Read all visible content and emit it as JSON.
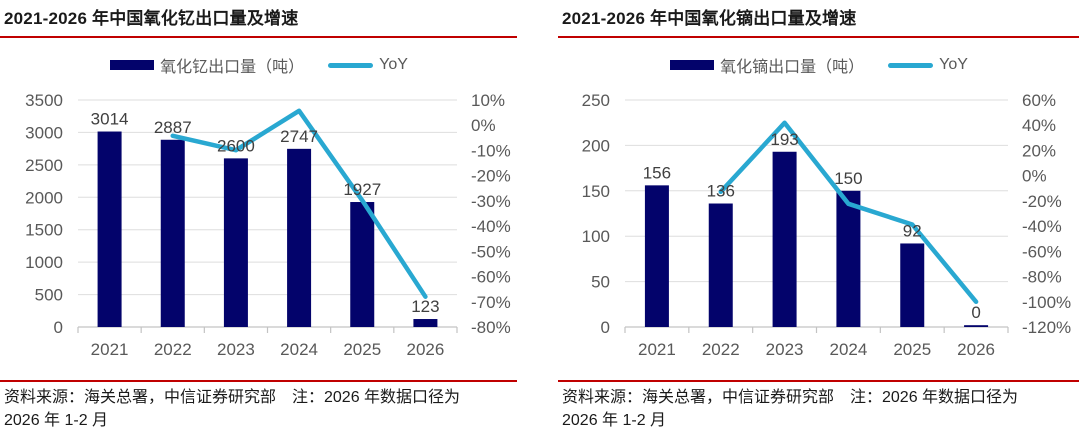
{
  "colors": {
    "bar_navy": "#03036B",
    "line_cyan": "#29A8D1",
    "rule_red": "#C00000",
    "grid_gray": "#DEDEDE",
    "axis_baseline_gray": "#C3C3C3",
    "axis_text_gray": "#595959",
    "data_label_gray": "#404040",
    "title_text": "#1A1A1A"
  },
  "chart_data": [
    {
      "type": "bar+line",
      "title": "2021-2026 年中国氧化钇出口量及增速",
      "categories": [
        "2021",
        "2022",
        "2023",
        "2024",
        "2025",
        "2026"
      ],
      "series": [
        {
          "name": "氧化钇出口量（吨）",
          "type": "bar",
          "axis": "left",
          "values": [
            3014,
            2887,
            2600,
            2747,
            1927,
            123
          ]
        },
        {
          "name": "YoY",
          "type": "line",
          "axis": "right",
          "unit": "%",
          "values": [
            null,
            -4.2,
            -9.9,
            5.7,
            -29.8,
            -68
          ]
        }
      ],
      "left_axis": {
        "min": 0,
        "max": 3500,
        "step": 500
      },
      "right_axis": {
        "min": -80,
        "max": 10,
        "step": 10,
        "suffix": "%"
      },
      "grid": "horizontal",
      "legend_position": "top-center",
      "source_note_lines": [
        "资料来源：海关总署，中信证券研究部　注：2026 年数据口径为",
        "2026 年 1-2 月"
      ]
    },
    {
      "type": "bar+line",
      "title": "2021-2026 年中国氧化镝出口量及增速",
      "categories": [
        "2021",
        "2022",
        "2023",
        "2024",
        "2025",
        "2026"
      ],
      "series": [
        {
          "name": "氧化镝出口量（吨）",
          "type": "bar",
          "axis": "left",
          "values": [
            156,
            136,
            193,
            150,
            92,
            0
          ]
        },
        {
          "name": "YoY",
          "type": "line",
          "axis": "right",
          "unit": "%",
          "values": [
            null,
            -12.8,
            41.9,
            -22.3,
            -38.7,
            -100
          ]
        }
      ],
      "left_axis": {
        "min": 0,
        "max": 250,
        "step": 50
      },
      "right_axis": {
        "min": -120,
        "max": 60,
        "step": 20,
        "suffix": "%"
      },
      "grid": "horizontal",
      "legend_position": "top-center",
      "source_note_lines": [
        "资料来源：海关总署，中信证券研究部　注：2026 年数据口径为",
        "2026 年 1-2 月"
      ]
    }
  ]
}
